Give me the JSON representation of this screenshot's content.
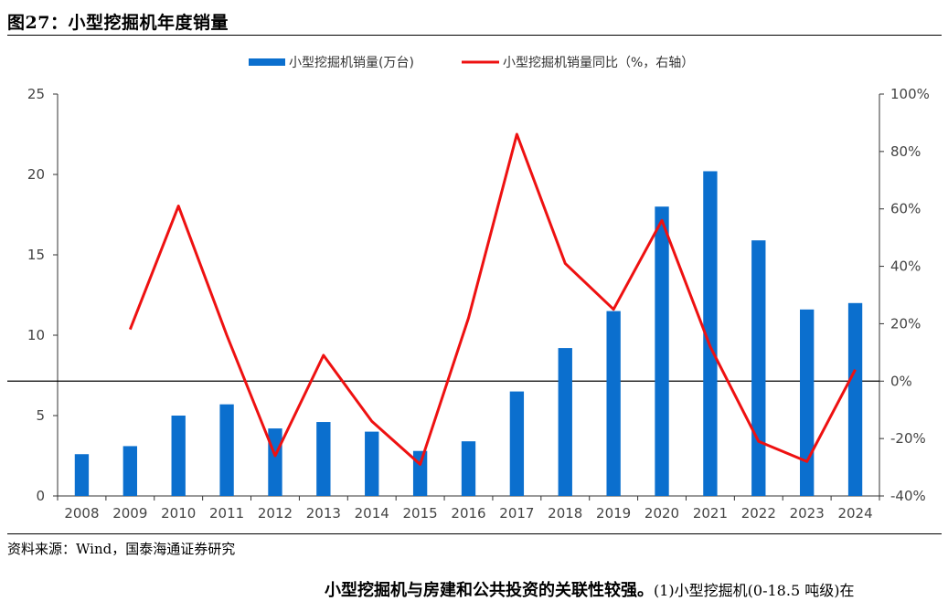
{
  "figure": {
    "title": "图27：小型挖掘机年度销量",
    "source": "资料来源：Wind，国泰海通证券研究",
    "trailing_text_bold": "小型挖掘机与房建和公共投资的关联性较强。",
    "trailing_text_normal": "(1)小型挖掘机(0-18.5 吨级)在"
  },
  "colors": {
    "bar": "#0b6fce",
    "line": "#ee1111",
    "axis": "#333333"
  },
  "chart_data": {
    "type": "bar",
    "categories": [
      "2008",
      "2009",
      "2010",
      "2011",
      "2012",
      "2013",
      "2014",
      "2015",
      "2016",
      "2017",
      "2018",
      "2019",
      "2020",
      "2021",
      "2022",
      "2023",
      "2024"
    ],
    "series": [
      {
        "name": "小型挖掘机销量(万台)",
        "type": "bar",
        "axis": "left",
        "values": [
          2.6,
          3.1,
          5.0,
          5.7,
          4.2,
          4.6,
          4.0,
          2.8,
          3.4,
          6.5,
          9.2,
          11.5,
          18.0,
          20.2,
          15.9,
          11.6,
          12.0
        ]
      },
      {
        "name": "小型挖掘机销量同比（%，右轴）",
        "type": "line",
        "axis": "right",
        "values": [
          null,
          18,
          61,
          16,
          -26,
          9,
          -14,
          -29,
          22,
          86,
          41,
          25,
          56,
          12,
          -21,
          -28,
          4
        ]
      }
    ],
    "y_left": {
      "min": 0,
      "max": 25,
      "ticks": [
        0,
        5,
        10,
        15,
        20,
        25
      ],
      "tick_labels": [
        "0",
        "5",
        "10",
        "15",
        "20",
        "25"
      ]
    },
    "y_right": {
      "min": -40,
      "max": 100,
      "ticks": [
        -40,
        -20,
        0,
        20,
        40,
        60,
        80,
        100
      ],
      "tick_labels": [
        "-40%",
        "-20%",
        "0%",
        "20%",
        "40%",
        "60%",
        "80%",
        "100%"
      ]
    },
    "zero_line": "right-axis 0%",
    "legend_position": "top-center",
    "grid": false
  }
}
